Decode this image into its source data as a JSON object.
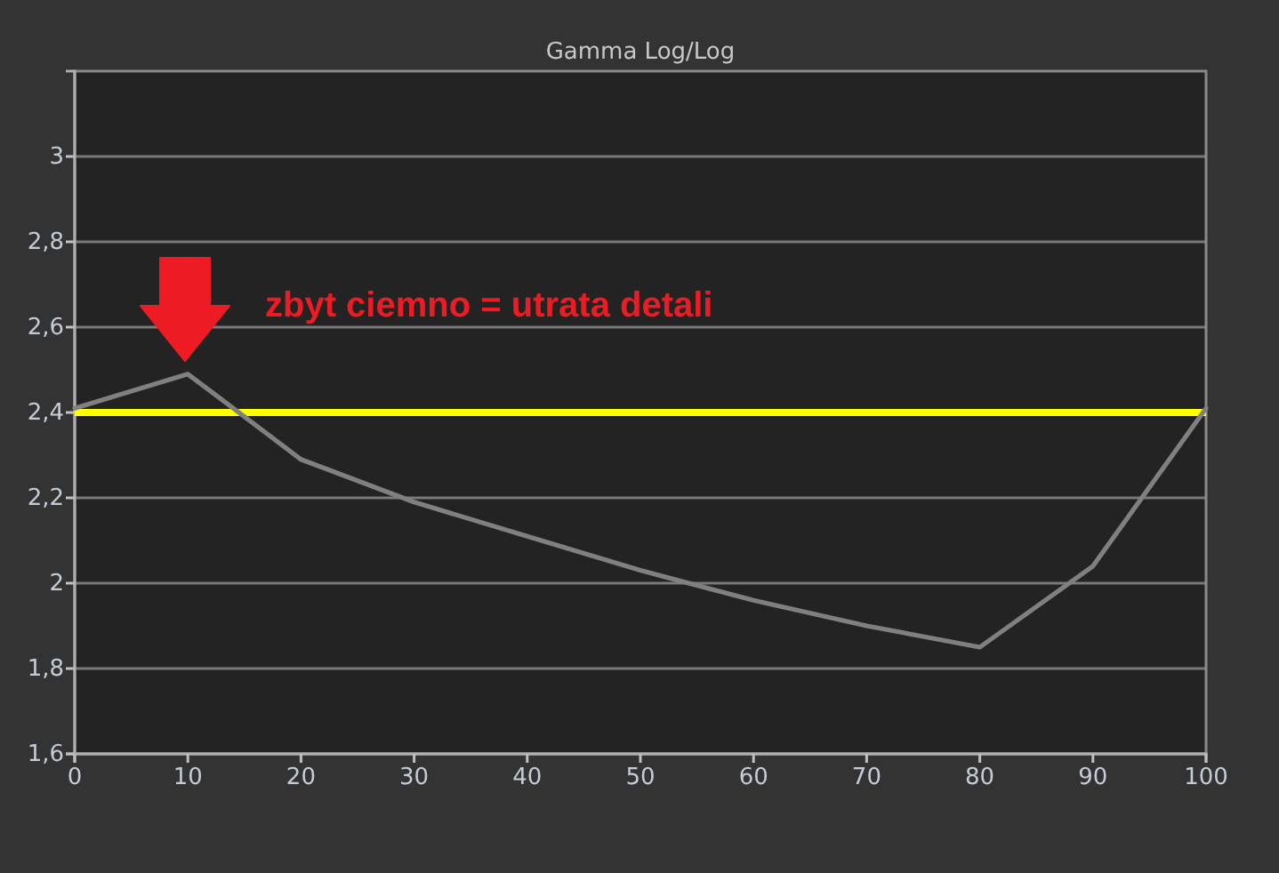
{
  "chart_data": {
    "type": "line",
    "title": "Gamma Log/Log",
    "x": [
      0,
      10,
      20,
      30,
      40,
      50,
      60,
      70,
      80,
      90,
      100
    ],
    "series": [
      {
        "color": "#808080",
        "values": [
          2.41,
          2.49,
          2.29,
          2.19,
          2.11,
          2.03,
          1.96,
          1.9,
          1.85,
          2.04,
          2.41
        ]
      }
    ],
    "xlim": [
      0,
      100
    ],
    "xticks": [
      0,
      10,
      20,
      30,
      40,
      50,
      60,
      70,
      80,
      90,
      100
    ],
    "ylim": [
      1.6,
      3.2
    ],
    "yticks": [
      {
        "value": 1.6,
        "label": "1,6"
      },
      {
        "value": 1.8,
        "label": "1,8"
      },
      2,
      {
        "value": 2.2,
        "label": "2,2"
      },
      {
        "value": 2.4,
        "label": "2,4"
      },
      {
        "value": 2.6,
        "label": "2,6"
      },
      {
        "value": 2.8,
        "label": "2,8"
      },
      3
    ],
    "ref_lines": [
      {
        "axis": "y",
        "value": 2.4,
        "color": "#ffff00"
      }
    ],
    "annotations": [
      "zbyt ciemno = utrata detali"
    ],
    "grid": "y",
    "marker": "none",
    "line_style": "solid"
  }
}
